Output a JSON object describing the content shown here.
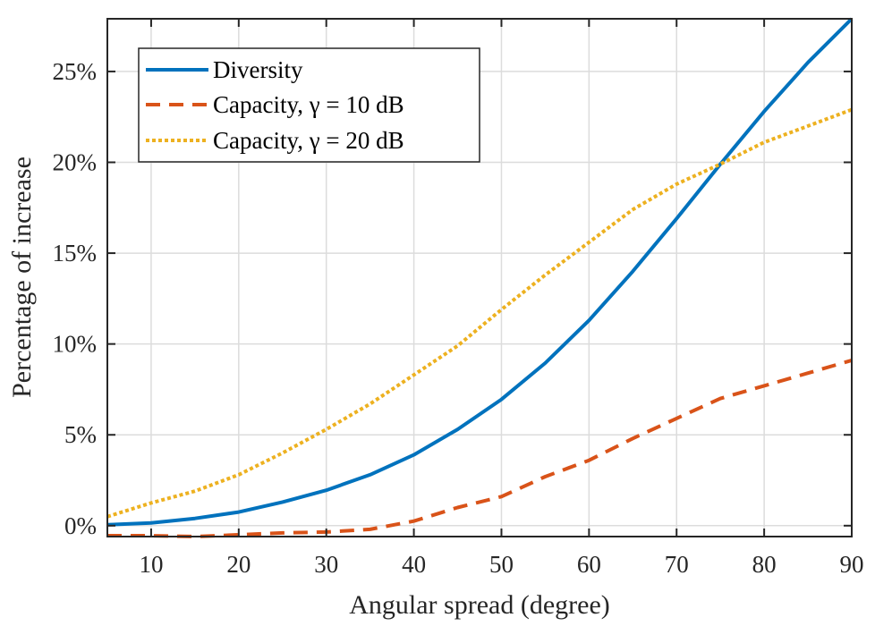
{
  "chart_data": {
    "type": "line",
    "title": "",
    "xlabel": "Angular spread (degree)",
    "ylabel": "Percentage of increase",
    "xlim": [
      5,
      90
    ],
    "ylim": [
      -0.6,
      27.9
    ],
    "grid": true,
    "legend_position": "top-left",
    "x_ticks": [
      10,
      20,
      30,
      40,
      50,
      60,
      70,
      80,
      90
    ],
    "x_tick_labels": [
      "10",
      "20",
      "30",
      "40",
      "50",
      "60",
      "70",
      "80",
      "90"
    ],
    "y_ticks": [
      0,
      5,
      10,
      15,
      20,
      25
    ],
    "y_tick_labels": [
      "0%",
      "5%",
      "10%",
      "15%",
      "20%",
      "25%"
    ],
    "x": [
      5,
      10,
      15,
      20,
      25,
      30,
      35,
      40,
      45,
      50,
      55,
      60,
      65,
      70,
      75,
      80,
      85,
      90
    ],
    "series": [
      {
        "name": "Diversity",
        "legend_label": "Diversity",
        "style": "solid",
        "color": "#0072BD",
        "values": [
          0.05,
          0.15,
          0.4,
          0.75,
          1.3,
          1.95,
          2.8,
          3.9,
          5.3,
          6.95,
          8.95,
          11.3,
          14.0,
          16.9,
          19.9,
          22.8,
          25.5,
          27.9
        ]
      },
      {
        "name": "Capacity, gamma = 10 dB",
        "legend_label": "Capacity, γ = 10 dB",
        "style": "dashed",
        "color": "#D95319",
        "values": [
          -0.55,
          -0.55,
          -0.6,
          -0.5,
          -0.4,
          -0.35,
          -0.2,
          0.25,
          1.0,
          1.6,
          2.7,
          3.6,
          4.8,
          5.9,
          7.0,
          7.7,
          8.4,
          9.1
        ]
      },
      {
        "name": "Capacity, gamma = 20 dB",
        "legend_label": "Capacity, γ = 20 dB",
        "style": "dotted",
        "color": "#EDB120",
        "values": [
          0.5,
          1.25,
          1.9,
          2.8,
          4.0,
          5.3,
          6.7,
          8.3,
          9.9,
          11.9,
          13.8,
          15.6,
          17.4,
          18.8,
          19.9,
          21.1,
          22.0,
          22.9
        ]
      }
    ]
  }
}
